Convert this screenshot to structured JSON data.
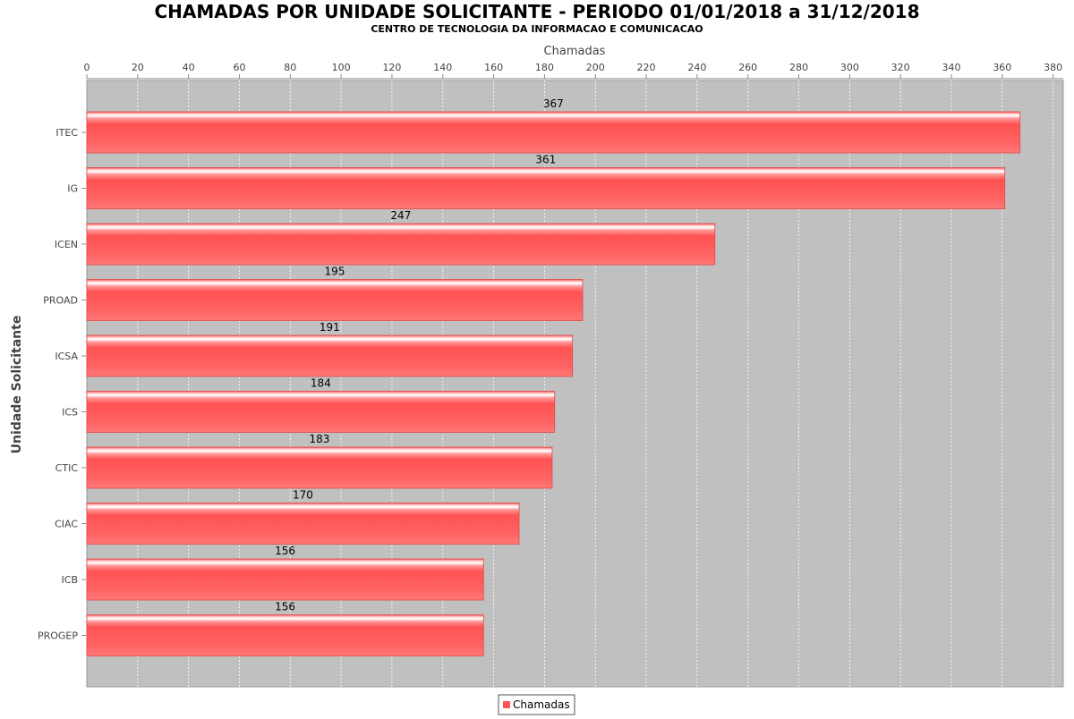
{
  "chart_data": {
    "type": "bar",
    "orientation": "horizontal",
    "title": "CHAMADAS POR UNIDADE SOLICITANTE - PERIODO 01/01/2018 a 31/12/2018",
    "subtitle": "CENTRO DE TECNOLOGIA DA INFORMACAO E COMUNICACAO",
    "xlabel": "Chamadas",
    "ylabel": "Unidade Solicitante",
    "xlim": [
      0,
      384
    ],
    "x_ticks": [
      0,
      20,
      40,
      60,
      80,
      100,
      120,
      140,
      160,
      180,
      200,
      220,
      240,
      260,
      280,
      300,
      320,
      340,
      360,
      380
    ],
    "x_axis_position": "top",
    "grid": true,
    "legend_position": "bottom-center",
    "categories": [
      "ITEC",
      "IG",
      "ICEN",
      "PROAD",
      "ICSA",
      "ICS",
      "CTIC",
      "CIAC",
      "ICB",
      "PROGEP"
    ],
    "series": [
      {
        "name": "Chamadas",
        "color": "#ff5555",
        "values": [
          367,
          361,
          247,
          195,
          191,
          184,
          183,
          170,
          156,
          156
        ]
      }
    ],
    "data_labels": true
  },
  "colors": {
    "plot_background": "#c0c0c0",
    "bar": "#ff5555",
    "grid": "#ffffff"
  }
}
